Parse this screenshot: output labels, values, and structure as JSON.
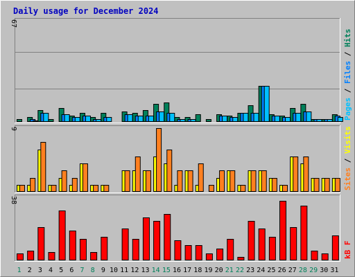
{
  "title": "Daily usage for December 2024",
  "colors": {
    "page_bg": "#c0c0c0",
    "panel_bg": "#c0c0c0",
    "grid": "#808080",
    "title": "#0000c0",
    "hits": "#00805a",
    "files": "#0080ff",
    "pages": "#00c0ff",
    "visits": "#ffff00",
    "sites": "#ff8020",
    "kbytes": "#ff0000",
    "weekend_day": "#00805a",
    "weekday": "#000000"
  },
  "chart_data": {
    "type": "bar",
    "x": [
      "1",
      "2",
      "3",
      "4",
      "5",
      "6",
      "7",
      "8",
      "9",
      "10",
      "11",
      "12",
      "13",
      "14",
      "15",
      "16",
      "17",
      "18",
      "19",
      "20",
      "21",
      "22",
      "23",
      "24",
      "25",
      "26",
      "27",
      "28",
      "29",
      "30",
      "31"
    ],
    "weekend_days": [
      "1",
      "7",
      "8",
      "14",
      "15",
      "21",
      "22",
      "28",
      "29"
    ],
    "panels": [
      {
        "name": "hits-files-pages",
        "ymax_label": "67",
        "ymax": 67,
        "right_label_parts": [
          {
            "text": "Pages",
            "color_key": "pages"
          },
          {
            "text": " / ",
            "color_key": "weekday"
          },
          {
            "text": "Files",
            "color_key": "files"
          },
          {
            "text": " / ",
            "color_key": "weekday"
          },
          {
            "text": "Hits",
            "color_key": "hits"
          }
        ],
        "series": [
          {
            "name": "Hits",
            "color_key": "hits",
            "values": [
              2,
              3,
              8,
              2,
              9,
              4,
              6,
              3,
              6,
              0,
              7,
              6,
              8,
              12,
              13,
              3,
              3,
              5,
              2,
              5,
              4,
              6,
              11,
              24,
              5,
              4,
              9,
              12,
              2,
              2,
              5
            ]
          },
          {
            "name": "Files",
            "color_key": "files",
            "values": [
              0,
              2,
              6,
              0,
              5,
              3,
              4,
              2,
              3,
              0,
              5,
              4,
              4,
              7,
              6,
              2,
              2,
              0,
              0,
              4,
              3,
              6,
              6,
              24,
              4,
              3,
              6,
              7,
              2,
              2,
              4
            ]
          },
          {
            "name": "Pages",
            "color_key": "pages",
            "values": [
              0,
              1,
              6,
              0,
              5,
              3,
              4,
              2,
              3,
              0,
              5,
              4,
              4,
              7,
              6,
              2,
              2,
              0,
              0,
              4,
              3,
              6,
              6,
              24,
              4,
              3,
              6,
              7,
              2,
              2,
              3
            ]
          }
        ],
        "overrides_note": ""
      },
      {
        "name": "visits-sites",
        "ymax_label": "9",
        "ymax": 9,
        "right_label_parts": [
          {
            "text": "Sites",
            "color_key": "sites"
          },
          {
            "text": " / ",
            "color_key": "weekday"
          },
          {
            "text": "Visits",
            "color_key": "visits"
          }
        ],
        "series": [
          {
            "name": "Visits",
            "color_key": "visits",
            "values": [
              1,
              1,
              6,
              1,
              2,
              1,
              4,
              1,
              1,
              0,
              3,
              3,
              3,
              5,
              4,
              1,
              3,
              1,
              0,
              2,
              3,
              1,
              3,
              3,
              2,
              1,
              5,
              4,
              2,
              2,
              2
            ]
          },
          {
            "name": "Sites",
            "color_key": "sites",
            "values": [
              1,
              2,
              7,
              1,
              3,
              2,
              4,
              1,
              1,
              0,
              3,
              5,
              3,
              9,
              6,
              3,
              3,
              4,
              1,
              3,
              3,
              1,
              3,
              3,
              2,
              1,
              5,
              5,
              2,
              2,
              2
            ]
          }
        ]
      },
      {
        "name": "kbytes",
        "ymax_label": "38",
        "ymax": 38,
        "right_label_parts": [
          {
            "text": "kB F",
            "color_key": "kbytes"
          }
        ],
        "series": [
          {
            "name": "kB F",
            "color_key": "kbytes",
            "values": [
              4,
              6,
              20,
              5,
              30,
              18,
              13,
              5,
              14,
              0,
              19,
              13,
              26,
              24,
              28,
              12,
              9,
              9,
              4,
              7,
              13,
              2,
              24,
              19,
              14,
              36,
              20,
              33,
              6,
              4,
              15
            ]
          }
        ]
      }
    ]
  }
}
